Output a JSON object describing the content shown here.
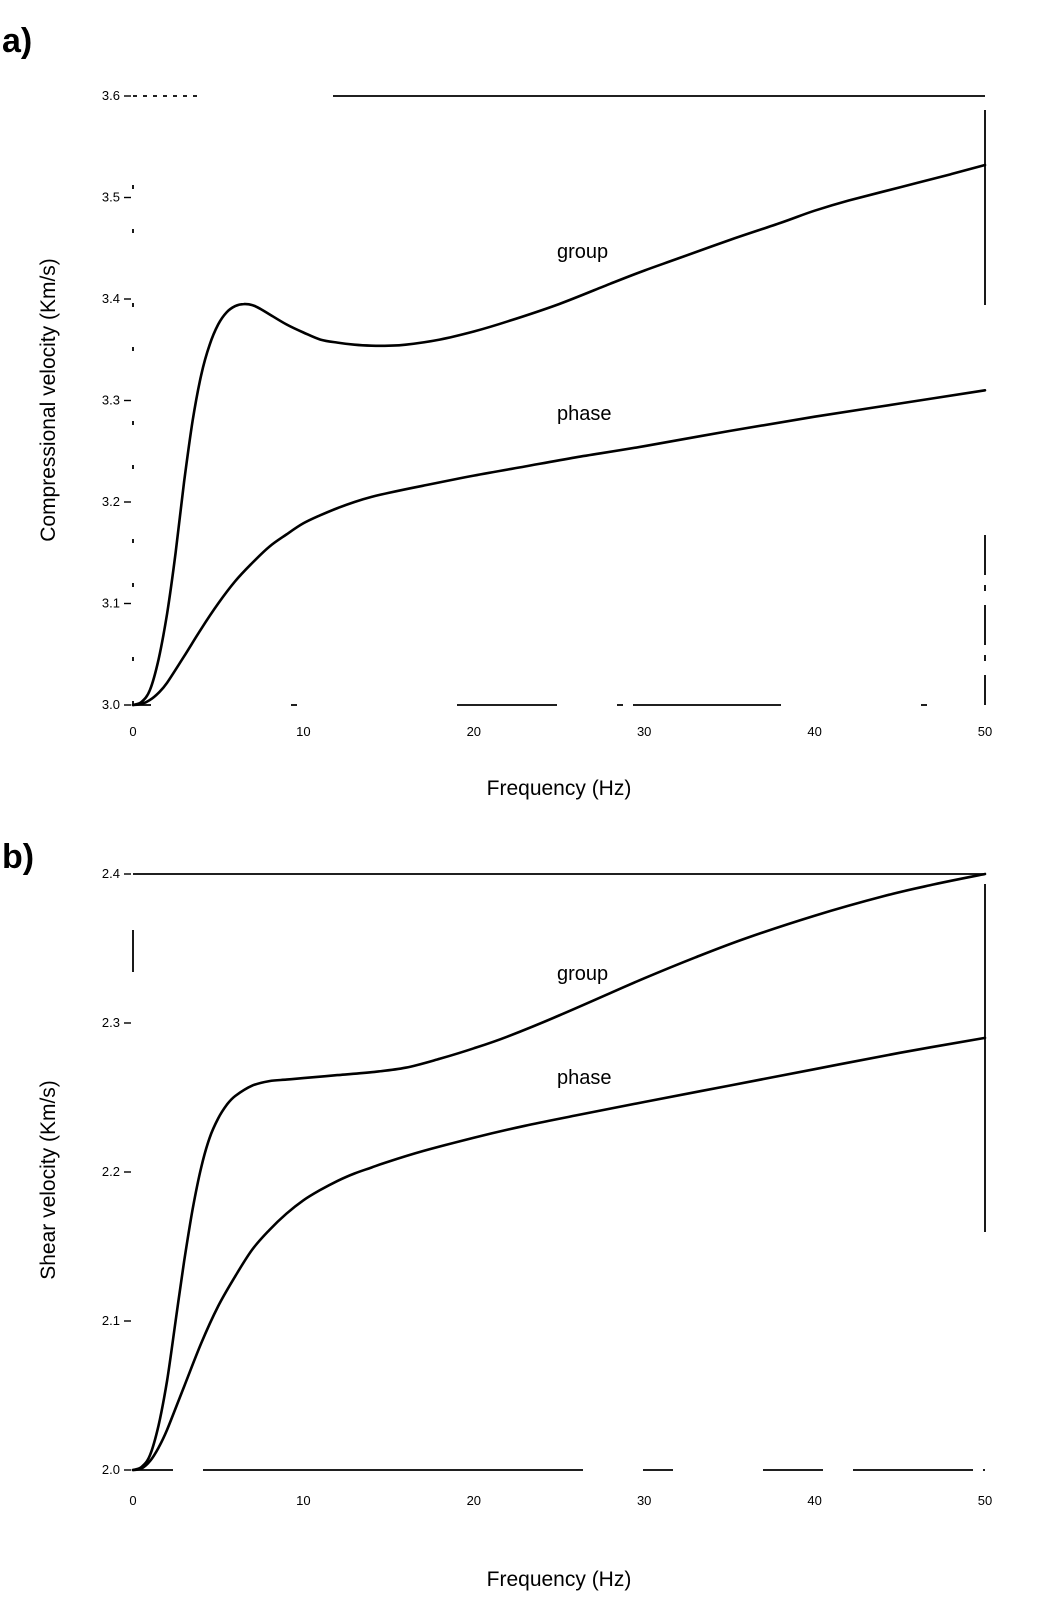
{
  "chart_data": [
    {
      "type": "line",
      "panel_label": "a)",
      "xlabel": "Frequency (Hz)",
      "ylabel": "Compressional velocity (Km/s)",
      "xlim": [
        0,
        50
      ],
      "ylim": [
        3.0,
        3.6
      ],
      "x_ticks": [
        "0",
        "10",
        "20",
        "30",
        "40",
        "50"
      ],
      "y_ticks": [
        "3.0",
        "3.1",
        "3.2",
        "3.3",
        "3.4",
        "3.5",
        "3.6"
      ],
      "series": [
        {
          "name": "group",
          "x": [
            0,
            0.5,
            1,
            1.5,
            2,
            2.5,
            3,
            3.5,
            4,
            4.5,
            5,
            5.5,
            6,
            6.5,
            7,
            7.5,
            8,
            9,
            10,
            11,
            12,
            13,
            14,
            15,
            16,
            18,
            20,
            22,
            25,
            28,
            30,
            32,
            35,
            38,
            40,
            42,
            45,
            48,
            50
          ],
          "y": [
            3.0,
            3.003,
            3.015,
            3.045,
            3.09,
            3.15,
            3.22,
            3.28,
            3.325,
            3.355,
            3.375,
            3.387,
            3.393,
            3.395,
            3.394,
            3.39,
            3.385,
            3.375,
            3.367,
            3.36,
            3.357,
            3.355,
            3.354,
            3.354,
            3.355,
            3.36,
            3.368,
            3.378,
            3.395,
            3.415,
            3.428,
            3.44,
            3.458,
            3.475,
            3.487,
            3.497,
            3.51,
            3.523,
            3.532
          ]
        },
        {
          "name": "phase",
          "x": [
            0,
            0.5,
            1,
            1.5,
            2,
            3,
            4,
            5,
            6,
            7,
            8,
            9,
            10,
            11,
            12,
            13,
            14,
            15,
            17,
            20,
            23,
            26,
            30,
            35,
            40,
            45,
            50
          ],
          "y": [
            3.0,
            3.001,
            3.005,
            3.012,
            3.022,
            3.048,
            3.075,
            3.1,
            3.122,
            3.14,
            3.156,
            3.168,
            3.179,
            3.187,
            3.194,
            3.2,
            3.205,
            3.209,
            3.216,
            3.226,
            3.235,
            3.244,
            3.255,
            3.27,
            3.284,
            3.297,
            3.31
          ]
        }
      ]
    },
    {
      "type": "line",
      "panel_label": "b)",
      "xlabel": "Frequency (Hz)",
      "ylabel": "Shear velocity (Km/s)",
      "xlim": [
        0,
        50
      ],
      "ylim": [
        2.0,
        2.4
      ],
      "x_ticks": [
        "0",
        "10",
        "20",
        "30",
        "40",
        "50"
      ],
      "y_ticks": [
        "2.0",
        "2.1",
        "2.2",
        "2.3",
        "2.4"
      ],
      "series": [
        {
          "name": "group",
          "x": [
            0,
            0.5,
            1,
            1.5,
            2,
            2.5,
            3,
            3.5,
            4,
            4.5,
            5,
            5.5,
            6,
            7,
            8,
            9,
            10,
            12,
            14,
            16,
            18,
            20,
            22,
            25,
            28,
            30,
            33,
            36,
            40,
            44,
            47,
            50
          ],
          "y": [
            2.0,
            2.002,
            2.01,
            2.03,
            2.06,
            2.1,
            2.14,
            2.175,
            2.203,
            2.223,
            2.236,
            2.245,
            2.251,
            2.258,
            2.261,
            2.262,
            2.263,
            2.265,
            2.267,
            2.27,
            2.276,
            2.283,
            2.291,
            2.305,
            2.32,
            2.33,
            2.344,
            2.357,
            2.372,
            2.385,
            2.393,
            2.4
          ]
        },
        {
          "name": "phase",
          "x": [
            0,
            0.5,
            1,
            1.5,
            2,
            3,
            4,
            5,
            6,
            7,
            8,
            9,
            10,
            11,
            12,
            13,
            14,
            15,
            17,
            20,
            23,
            26,
            30,
            35,
            40,
            45,
            50
          ],
          "y": [
            2.0,
            2.001,
            2.006,
            2.015,
            2.027,
            2.056,
            2.085,
            2.11,
            2.13,
            2.148,
            2.161,
            2.172,
            2.181,
            2.188,
            2.194,
            2.199,
            2.203,
            2.207,
            2.214,
            2.223,
            2.231,
            2.238,
            2.247,
            2.258,
            2.269,
            2.28,
            2.29
          ]
        }
      ]
    }
  ]
}
